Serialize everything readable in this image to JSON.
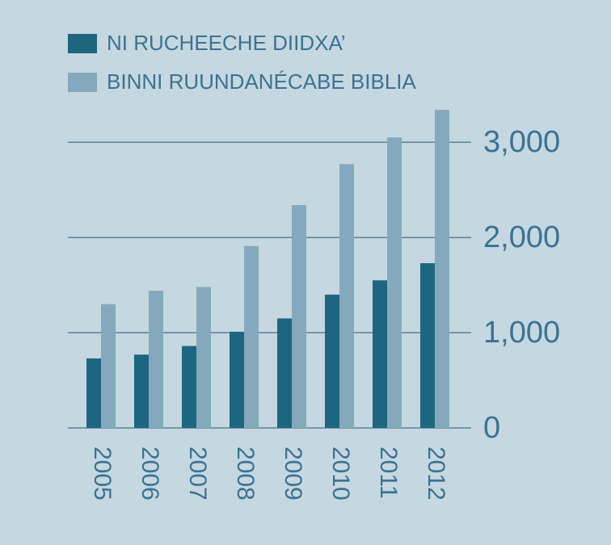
{
  "chart_data": {
    "type": "bar",
    "categories": [
      "2005",
      "2006",
      "2007",
      "2008",
      "2009",
      "2010",
      "2011",
      "2012"
    ],
    "series": [
      {
        "name": "NI RUCHEECHE DIIDXA’",
        "color": "#1e6680",
        "values": [
          730,
          770,
          860,
          1010,
          1150,
          1400,
          1550,
          1730
        ]
      },
      {
        "name": "BINNI RUUNDANÉCABE BIBLIA",
        "color": "#85a9bc",
        "values": [
          1300,
          1440,
          1480,
          1910,
          2340,
          2770,
          3050,
          3340
        ]
      }
    ],
    "ylim": [
      0,
      3400
    ],
    "yticks": [
      0,
      {
        "value": 1000,
        "label": "1,000"
      },
      {
        "value": 2000,
        "label": "2,000"
      },
      {
        "value": 3000,
        "label": "3,000"
      }
    ],
    "grid": true,
    "legend": "top-left"
  }
}
